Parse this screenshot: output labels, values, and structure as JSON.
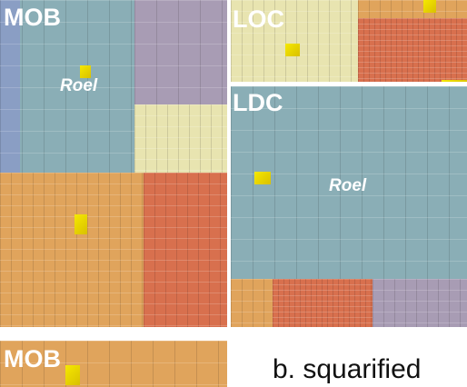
{
  "treemap_a": {
    "regions": [
      {
        "label": "MOB",
        "highlight": "Roel"
      },
      {
        "label": "LOC"
      },
      {
        "label": "LDC",
        "highlight": "Roel"
      }
    ]
  },
  "treemap_b": {
    "regions": [
      {
        "label": "MOB"
      }
    ]
  },
  "caption": "b. squarified",
  "colors": {
    "teal": "#8aaeb6",
    "purple": "#a89cb4",
    "cream": "#e8e4b0",
    "orange": "#e0a45c",
    "red": "#d8704e",
    "highlight": "#f0e000"
  }
}
